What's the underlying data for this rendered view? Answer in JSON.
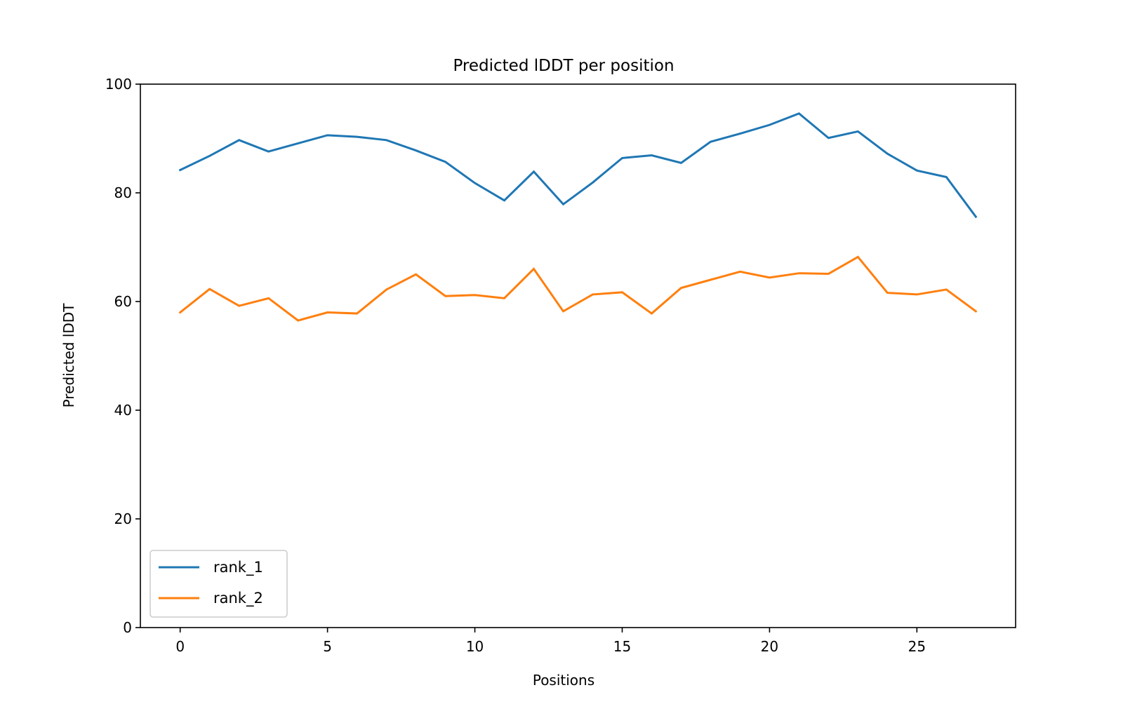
{
  "chart_data": {
    "type": "line",
    "title": "Predicted lDDT per position",
    "xlabel": "Positions",
    "ylabel": "Predicted lDDT",
    "xlim": [
      -1.35,
      28.35
    ],
    "ylim": [
      0,
      100
    ],
    "xticks": [
      0,
      5,
      10,
      15,
      20,
      25
    ],
    "yticks": [
      0,
      20,
      40,
      60,
      80,
      100
    ],
    "grid": false,
    "legend_position": "lower left",
    "x": [
      0,
      1,
      2,
      3,
      4,
      5,
      6,
      7,
      8,
      9,
      10,
      11,
      12,
      13,
      14,
      15,
      16,
      17,
      18,
      19,
      20,
      21,
      22,
      23,
      24,
      25,
      26,
      27
    ],
    "series": [
      {
        "name": "rank_1",
        "color": "#1f77b4",
        "values": [
          84.2,
          86.8,
          89.7,
          87.6,
          89.1,
          90.6,
          90.3,
          89.7,
          87.8,
          85.7,
          81.8,
          78.6,
          83.9,
          77.9,
          81.9,
          86.4,
          86.9,
          85.5,
          89.4,
          90.9,
          92.5,
          94.6,
          90.1,
          91.3,
          87.2,
          84.1,
          82.9,
          75.6
        ]
      },
      {
        "name": "rank_2",
        "color": "#ff7f0e",
        "values": [
          58.0,
          62.3,
          59.2,
          60.6,
          56.5,
          58.0,
          57.8,
          62.2,
          65.0,
          61.0,
          61.2,
          60.6,
          66.0,
          58.2,
          61.3,
          61.7,
          57.8,
          62.5,
          64.0,
          65.5,
          64.4,
          65.2,
          65.1,
          68.2,
          61.6,
          61.3,
          62.2,
          58.2
        ]
      }
    ]
  }
}
